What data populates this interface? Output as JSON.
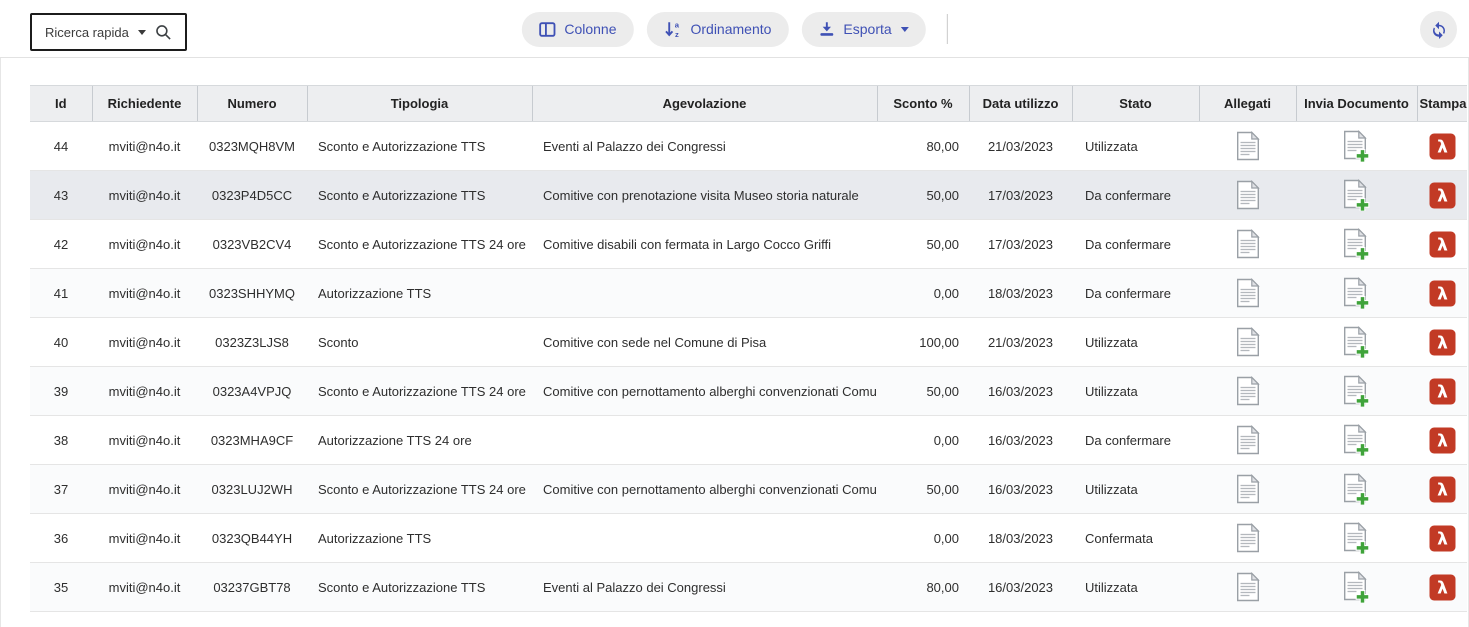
{
  "toolbar": {
    "search": {
      "label": "Ricerca rapida"
    },
    "buttons": [
      {
        "label": "Colonne",
        "icon": "columns-icon"
      },
      {
        "label": "Ordinamento",
        "icon": "sort-icon"
      },
      {
        "label": "Esporta",
        "icon": "download-icon",
        "has_caret": true
      }
    ],
    "refresh": {
      "icon": "refresh-icon"
    }
  },
  "colors": {
    "accent_indigo": "#3f51b5",
    "pill_background": "#ececec",
    "header_background": "#edeef0",
    "highlighted_row": "#e8eaee",
    "pdf_red": "#c23a25",
    "plus_green": "#3fa33a"
  },
  "table": {
    "columns": [
      "Id",
      "Richiedente",
      "Numero",
      "Tipologia",
      "Agevolazione",
      "Sconto %",
      "Data utilizzo",
      "Stato",
      "Allegati",
      "Invia Documento",
      "Stampa"
    ],
    "rows": [
      {
        "id": "44",
        "richiedente": "mviti@n4o.it",
        "numero": "0323MQH8VM",
        "tipologia": "Sconto e Autorizzazione TTS",
        "agevolazione": "Eventi al Palazzo dei Congressi",
        "sconto": "80,00",
        "data_utilizzo": "21/03/2023",
        "stato": "Utilizzata",
        "highlighted": false
      },
      {
        "id": "43",
        "richiedente": "mviti@n4o.it",
        "numero": "0323P4D5CC",
        "tipologia": "Sconto e Autorizzazione TTS",
        "agevolazione": "Comitive con prenotazione visita Museo storia naturale",
        "sconto": "50,00",
        "data_utilizzo": "17/03/2023",
        "stato": "Da confermare",
        "highlighted": true
      },
      {
        "id": "42",
        "richiedente": "mviti@n4o.it",
        "numero": "0323VB2CV4",
        "tipologia": "Sconto e Autorizzazione TTS 24 ore",
        "agevolazione": "Comitive disabili con fermata in Largo Cocco Griffi",
        "sconto": "50,00",
        "data_utilizzo": "17/03/2023",
        "stato": "Da confermare",
        "highlighted": false
      },
      {
        "id": "41",
        "richiedente": "mviti@n4o.it",
        "numero": "0323SHHYMQ",
        "tipologia": "Autorizzazione TTS",
        "agevolazione": "",
        "sconto": "0,00",
        "data_utilizzo": "18/03/2023",
        "stato": "Da confermare",
        "highlighted": false
      },
      {
        "id": "40",
        "richiedente": "mviti@n4o.it",
        "numero": "0323Z3LJS8",
        "tipologia": "Sconto",
        "agevolazione": "Comitive con sede nel Comune di Pisa",
        "sconto": "100,00",
        "data_utilizzo": "21/03/2023",
        "stato": "Utilizzata",
        "highlighted": false
      },
      {
        "id": "39",
        "richiedente": "mviti@n4o.it",
        "numero": "0323A4VPJQ",
        "tipologia": "Sconto e Autorizzazione TTS 24 ore",
        "agevolazione": "Comitive con pernottamento alberghi convenzionati Comune",
        "sconto": "50,00",
        "data_utilizzo": "16/03/2023",
        "stato": "Utilizzata",
        "highlighted": false
      },
      {
        "id": "38",
        "richiedente": "mviti@n4o.it",
        "numero": "0323MHA9CF",
        "tipologia": "Autorizzazione TTS 24 ore",
        "agevolazione": "",
        "sconto": "0,00",
        "data_utilizzo": "16/03/2023",
        "stato": "Da confermare",
        "highlighted": false
      },
      {
        "id": "37",
        "richiedente": "mviti@n4o.it",
        "numero": "0323LUJ2WH",
        "tipologia": "Sconto e Autorizzazione TTS 24 ore",
        "agevolazione": "Comitive con pernottamento alberghi convenzionati Comune",
        "sconto": "50,00",
        "data_utilizzo": "16/03/2023",
        "stato": "Utilizzata",
        "highlighted": false
      },
      {
        "id": "36",
        "richiedente": "mviti@n4o.it",
        "numero": "0323QB44YH",
        "tipologia": "Autorizzazione TTS",
        "agevolazione": "",
        "sconto": "0,00",
        "data_utilizzo": "18/03/2023",
        "stato": "Confermata",
        "highlighted": false
      },
      {
        "id": "35",
        "richiedente": "mviti@n4o.it",
        "numero": "03237GBT78",
        "tipologia": "Sconto e Autorizzazione TTS",
        "agevolazione": "Eventi al Palazzo dei Congressi",
        "sconto": "80,00",
        "data_utilizzo": "16/03/2023",
        "stato": "Utilizzata",
        "highlighted": false
      }
    ]
  }
}
